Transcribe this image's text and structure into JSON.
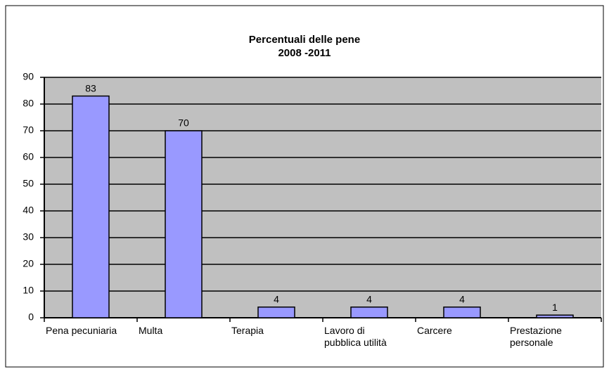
{
  "chart_data": {
    "type": "bar",
    "title": [
      "Percentuali delle pene",
      "2008 -2011"
    ],
    "categories": [
      "Pena pecuniaria",
      "Multa",
      "Terapia",
      "Lavoro di\npubblica utilità",
      "Carcere",
      "Prestazione\npersonale"
    ],
    "values": [
      83,
      70,
      4,
      4,
      4,
      1
    ],
    "color": "#9999ff",
    "ylim": [
      0,
      90
    ],
    "yticks": [
      0,
      10,
      20,
      30,
      40,
      50,
      60,
      70,
      80,
      90
    ],
    "grid": true
  }
}
